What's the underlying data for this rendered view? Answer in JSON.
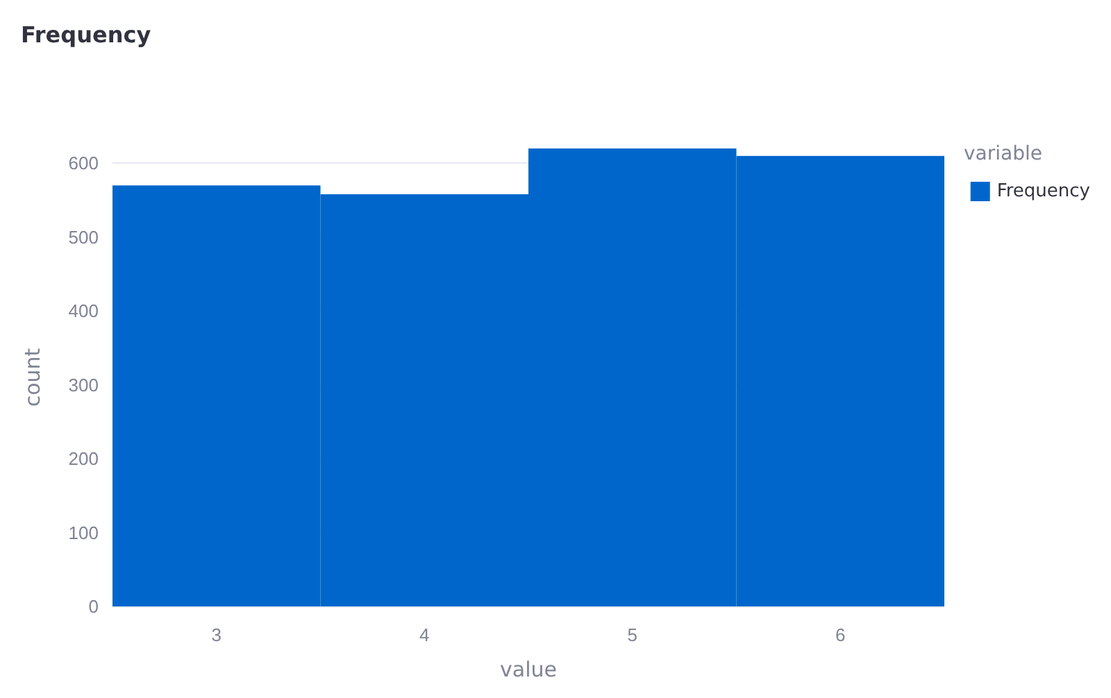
{
  "chart_data": {
    "type": "bar",
    "title": "Frequency",
    "xlabel": "value",
    "ylabel": "count",
    "legend_title": "variable",
    "categories": [
      "3",
      "4",
      "5",
      "6"
    ],
    "series": [
      {
        "name": "Frequency",
        "color": "#0066cc",
        "values": [
          570,
          558,
          620,
          610
        ]
      }
    ],
    "ylim": [
      0,
      620
    ],
    "yticks": [
      0,
      100,
      200,
      300,
      400,
      500,
      600
    ],
    "grid": "y",
    "legend": "top right"
  }
}
